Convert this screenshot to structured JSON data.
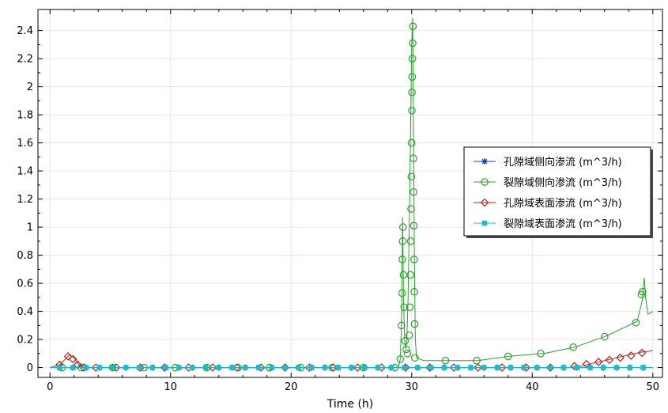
{
  "chart_data": {
    "type": "line",
    "xlabel": "Time (h)",
    "ylabel": "",
    "xlim": [
      -1,
      50.8
    ],
    "ylim": [
      -0.07,
      2.55
    ],
    "x_ticks": [
      0,
      10,
      20,
      30,
      40,
      50
    ],
    "y_ticks": [
      0,
      0.2,
      0.4,
      0.6,
      0.8,
      1,
      1.2,
      1.4,
      1.6,
      1.8,
      2,
      2.2,
      2.4
    ],
    "grid": true,
    "legend_position": "right",
    "series": [
      {
        "name": "孔隙域侧向渗流 (m^3/h)",
        "color": "#1f3fbf",
        "marker": "asterisk",
        "line": [
          [
            0,
            0
          ],
          [
            50,
            0
          ]
        ],
        "markers": [
          [
            0.8,
            0
          ],
          [
            1.9,
            0
          ],
          [
            3,
            0
          ],
          [
            4.1,
            0
          ],
          [
            5.2,
            0
          ],
          [
            6.3,
            0
          ],
          [
            7.4,
            0
          ],
          [
            8.5,
            0
          ],
          [
            9.6,
            0
          ],
          [
            10.7,
            0
          ],
          [
            11.8,
            0
          ],
          [
            12.9,
            0
          ],
          [
            14,
            0
          ],
          [
            15.1,
            0
          ],
          [
            16.2,
            0
          ],
          [
            17.3,
            0
          ],
          [
            18.4,
            0
          ],
          [
            19.5,
            0
          ],
          [
            20.6,
            0
          ],
          [
            21.7,
            0
          ],
          [
            22.8,
            0
          ],
          [
            23.9,
            0
          ],
          [
            25,
            0
          ],
          [
            26.1,
            0
          ],
          [
            27.2,
            0
          ],
          [
            28.3,
            0
          ],
          [
            29.4,
            0
          ],
          [
            30.5,
            0
          ],
          [
            31.6,
            0
          ],
          [
            32.7,
            0
          ],
          [
            33.8,
            0
          ],
          [
            34.9,
            0
          ],
          [
            36,
            0
          ],
          [
            37.1,
            0
          ],
          [
            38.2,
            0
          ],
          [
            39.3,
            0
          ],
          [
            40.4,
            0
          ],
          [
            41.5,
            0
          ],
          [
            42.6,
            0
          ],
          [
            43.7,
            0
          ],
          [
            44.8,
            0
          ],
          [
            45.9,
            0
          ],
          [
            47,
            0
          ],
          [
            48.1,
            0
          ],
          [
            49.2,
            0
          ]
        ]
      },
      {
        "name": "裂隙域侧向渗流 (m^3/h)",
        "color": "#2ca02c",
        "marker": "circle",
        "line": [
          [
            0,
            0
          ],
          [
            28.9,
            0
          ],
          [
            29.05,
            0.06
          ],
          [
            29.15,
            0.3
          ],
          [
            29.25,
            1.07
          ],
          [
            29.32,
            0.5
          ],
          [
            29.42,
            0.19
          ],
          [
            29.52,
            0.13
          ],
          [
            29.6,
            0.2
          ],
          [
            29.7,
            0.5
          ],
          [
            29.8,
            1.0
          ],
          [
            29.92,
            1.8
          ],
          [
            30.0,
            2.3
          ],
          [
            30.08,
            2.49
          ],
          [
            30.16,
            1.6
          ],
          [
            30.22,
            0.8
          ],
          [
            30.3,
            0.2
          ],
          [
            30.4,
            0.07
          ],
          [
            31,
            0.05
          ],
          [
            33,
            0.05
          ],
          [
            35.5,
            0.05
          ],
          [
            38,
            0.08
          ],
          [
            41,
            0.1
          ],
          [
            43.5,
            0.145
          ],
          [
            46,
            0.22
          ],
          [
            47.5,
            0.28
          ],
          [
            48.7,
            0.33
          ],
          [
            49.1,
            0.47
          ],
          [
            49.3,
            0.64
          ],
          [
            49.4,
            0.5
          ],
          [
            49.6,
            0.38
          ],
          [
            50,
            0.4
          ]
        ],
        "markers": [
          [
            1,
            0
          ],
          [
            2.6,
            0
          ],
          [
            5.2,
            0
          ],
          [
            7.8,
            0
          ],
          [
            10.4,
            0
          ],
          [
            13,
            0
          ],
          [
            15.6,
            0
          ],
          [
            18.2,
            0
          ],
          [
            20.8,
            0
          ],
          [
            23.4,
            0
          ],
          [
            26,
            0
          ],
          [
            28.6,
            0
          ],
          [
            29.05,
            0.06
          ],
          [
            29.15,
            0.3
          ],
          [
            29.2,
            0.53
          ],
          [
            29.22,
            0.77
          ],
          [
            29.25,
            0.9
          ],
          [
            29.28,
            1.0
          ],
          [
            29.32,
            0.66
          ],
          [
            29.38,
            0.43
          ],
          [
            29.45,
            0.19
          ],
          [
            29.55,
            0.13
          ],
          [
            29.65,
            0.1
          ],
          [
            29.8,
            0.23
          ],
          [
            29.85,
            0.43
          ],
          [
            29.9,
            0.66
          ],
          [
            29.92,
            0.9
          ],
          [
            29.95,
            1.13
          ],
          [
            29.97,
            1.36
          ],
          [
            29.99,
            1.6
          ],
          [
            30.01,
            1.83
          ],
          [
            30.02,
            1.96
          ],
          [
            30.04,
            2.07
          ],
          [
            30.06,
            2.2
          ],
          [
            30.08,
            2.31
          ],
          [
            30.1,
            2.43
          ],
          [
            30.14,
            1.49
          ],
          [
            30.16,
            1.25
          ],
          [
            30.18,
            1.01
          ],
          [
            30.2,
            0.77
          ],
          [
            30.22,
            0.54
          ],
          [
            30.24,
            0.31
          ],
          [
            30.26,
            0.07
          ],
          [
            32.8,
            0.05
          ],
          [
            35.4,
            0.05
          ],
          [
            38,
            0.08
          ],
          [
            40.7,
            0.1
          ],
          [
            43.4,
            0.145
          ],
          [
            46,
            0.22
          ],
          [
            48.6,
            0.32
          ],
          [
            49.05,
            0.52
          ],
          [
            49.15,
            0.54
          ]
        ]
      },
      {
        "name": "孔隙域表面渗流 (m^3/h)",
        "color": "#b22222",
        "marker": "diamond",
        "line": [
          [
            0,
            0
          ],
          [
            0.8,
            0.02
          ],
          [
            1.6,
            0.09
          ],
          [
            2.0,
            0.07
          ],
          [
            2.4,
            0.02
          ],
          [
            2.8,
            0
          ],
          [
            43,
            0
          ],
          [
            44,
            0.01
          ],
          [
            45,
            0.03
          ],
          [
            46,
            0.05
          ],
          [
            47,
            0.07
          ],
          [
            48,
            0.09
          ],
          [
            49,
            0.11
          ],
          [
            50,
            0.12
          ]
        ],
        "markers": [
          [
            0.8,
            0.02
          ],
          [
            1.5,
            0.08
          ],
          [
            1.9,
            0.06
          ],
          [
            2.3,
            0.02
          ],
          [
            2.8,
            0
          ],
          [
            3.8,
            0
          ],
          [
            5.5,
            0
          ],
          [
            7.5,
            0
          ],
          [
            9.5,
            0
          ],
          [
            11.5,
            0
          ],
          [
            13.5,
            0
          ],
          [
            15.5,
            0
          ],
          [
            17.5,
            0
          ],
          [
            19.5,
            0
          ],
          [
            21.5,
            0
          ],
          [
            23.5,
            0
          ],
          [
            25.5,
            0
          ],
          [
            27.5,
            0
          ],
          [
            29.5,
            0
          ],
          [
            31.5,
            0
          ],
          [
            33.5,
            0
          ],
          [
            35.5,
            0
          ],
          [
            37.5,
            0
          ],
          [
            39.5,
            0
          ],
          [
            41.5,
            0
          ],
          [
            43.5,
            0.01
          ],
          [
            44.5,
            0.025
          ],
          [
            45.5,
            0.04
          ],
          [
            46.4,
            0.055
          ],
          [
            47.3,
            0.07
          ],
          [
            48.2,
            0.085
          ],
          [
            49.1,
            0.105
          ]
        ]
      },
      {
        "name": "裂隙域表面渗流 (m^3/h)",
        "color": "#17becf",
        "marker": "square",
        "line": [
          [
            0,
            0
          ],
          [
            50,
            0
          ]
        ],
        "markers": [
          [
            0.8,
            0
          ],
          [
            1.9,
            0
          ],
          [
            3,
            0
          ],
          [
            4.1,
            0
          ],
          [
            5.2,
            0
          ],
          [
            6.3,
            0
          ],
          [
            7.4,
            0
          ],
          [
            8.5,
            0
          ],
          [
            9.6,
            0
          ],
          [
            10.7,
            0
          ],
          [
            11.8,
            0
          ],
          [
            12.9,
            0
          ],
          [
            14,
            0
          ],
          [
            15.1,
            0
          ],
          [
            16.2,
            0
          ],
          [
            17.3,
            0
          ],
          [
            18.4,
            0
          ],
          [
            19.5,
            0
          ],
          [
            20.6,
            0
          ],
          [
            21.7,
            0
          ],
          [
            22.8,
            0
          ],
          [
            23.9,
            0
          ],
          [
            25,
            0
          ],
          [
            26.1,
            0
          ],
          [
            27.2,
            0
          ],
          [
            28.3,
            0
          ],
          [
            29.4,
            0
          ],
          [
            30.5,
            0
          ],
          [
            31.6,
            0
          ],
          [
            32.7,
            0
          ],
          [
            33.8,
            0
          ],
          [
            34.9,
            0
          ],
          [
            36,
            0
          ],
          [
            37.1,
            0
          ],
          [
            38.2,
            0
          ],
          [
            39.3,
            0
          ],
          [
            40.4,
            0
          ],
          [
            41.5,
            0
          ],
          [
            42.6,
            0
          ],
          [
            43.7,
            0
          ],
          [
            44.8,
            0
          ],
          [
            45.9,
            0
          ],
          [
            47,
            0
          ],
          [
            48.1,
            0
          ],
          [
            49.2,
            0
          ]
        ]
      }
    ]
  }
}
